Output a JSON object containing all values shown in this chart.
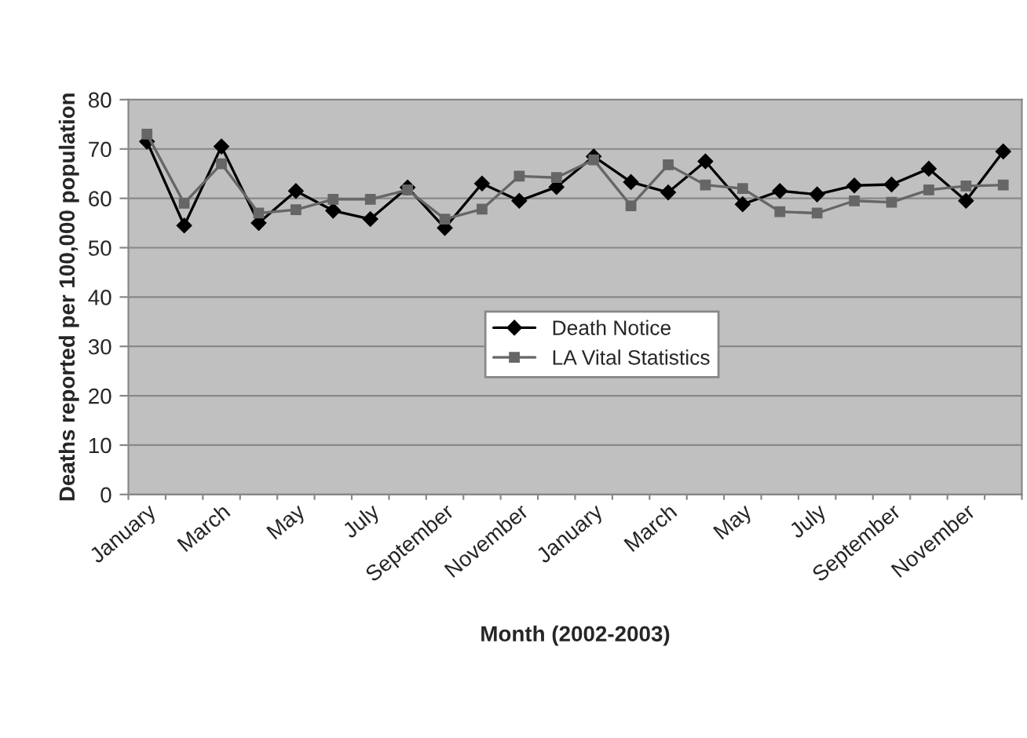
{
  "chart_data": {
    "type": "line",
    "xlabel": "Month (2002-2003)",
    "ylabel": "Deaths reported per 100,000 population",
    "categories": [
      "January",
      null,
      "March",
      null,
      "May",
      null,
      "July",
      null,
      "September",
      null,
      "November",
      null,
      "January",
      null,
      "March",
      null,
      "May",
      null,
      "July",
      null,
      "September",
      null,
      "November",
      null
    ],
    "series": [
      {
        "name": "Death Notice",
        "color": "#000000",
        "marker": "diamond",
        "values": [
          71.5,
          54.5,
          70.5,
          55,
          61.5,
          57.5,
          55.8,
          62.2,
          54,
          63,
          59.5,
          62.3,
          68.5,
          63.3,
          61.2,
          67.5,
          58.8,
          61.5,
          60.8,
          62.6,
          62.8,
          66,
          59.5,
          69.5
        ]
      },
      {
        "name": "LA Vital Statistics",
        "color": "#666666",
        "marker": "square",
        "values": [
          73,
          59,
          67,
          57,
          57.7,
          59.8,
          59.8,
          61.7,
          55.8,
          57.8,
          64.5,
          64.2,
          67.8,
          58.5,
          66.8,
          62.7,
          62,
          57.3,
          57,
          59.5,
          59.2,
          61.7,
          62.5,
          62.7
        ]
      }
    ],
    "ylim": [
      0,
      80
    ],
    "yticks": [
      0,
      10,
      20,
      30,
      40,
      50,
      60,
      70,
      80
    ],
    "grid": "y",
    "legend": "center"
  }
}
